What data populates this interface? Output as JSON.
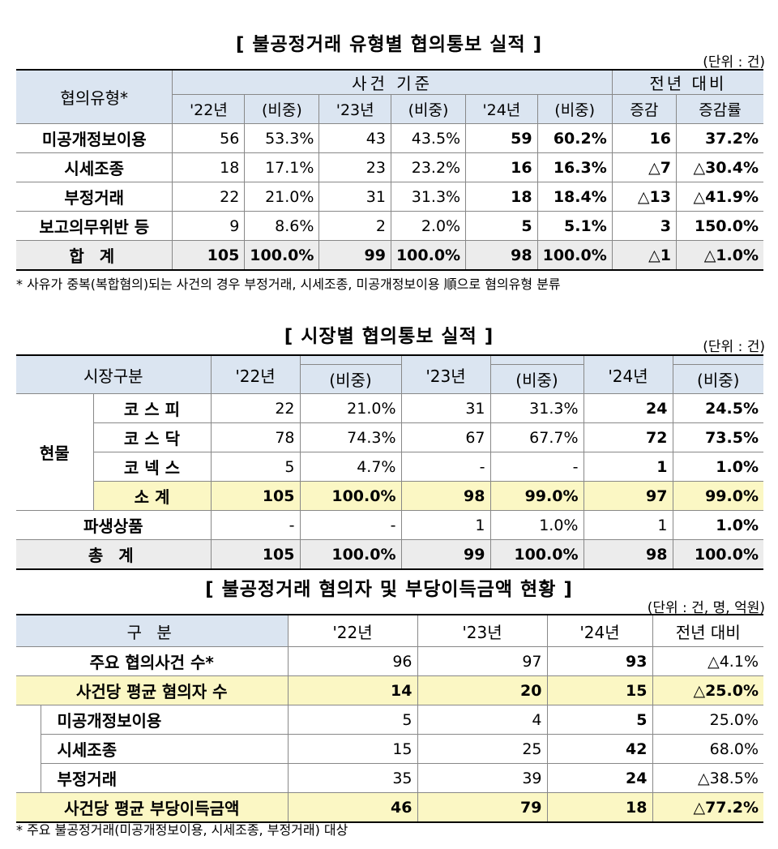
{
  "t1": {
    "title": "[ 불공정거래 유형별 협의통보 실적 ]",
    "unit": "(단위 : 건)",
    "h_type": "협의유형*",
    "h_case": "사건 기준",
    "h_prev": "전년 대비",
    "h_22": "'22년",
    "h_ratio": "(비중)",
    "h_23": "'23년",
    "h_24": "'24년",
    "h_inc": "증감",
    "h_rate": "증감률",
    "rows": [
      {
        "label": "미공개정보이용",
        "v22": "56",
        "r22": "53.3%",
        "v23": "43",
        "r23": "43.5%",
        "v24": "59",
        "r24": "60.2%",
        "inc": "16",
        "rate": "37.2%"
      },
      {
        "label": "시세조종",
        "v22": "18",
        "r22": "17.1%",
        "v23": "23",
        "r23": "23.2%",
        "v24": "16",
        "r24": "16.3%",
        "inc": "△7",
        "rate": "△30.4%"
      },
      {
        "label": "부정거래",
        "v22": "22",
        "r22": "21.0%",
        "v23": "31",
        "r23": "31.3%",
        "v24": "18",
        "r24": "18.4%",
        "inc": "△13",
        "rate": "△41.9%"
      },
      {
        "label": "보고의무위반 등",
        "v22": "9",
        "r22": "8.6%",
        "v23": "2",
        "r23": "2.0%",
        "v24": "5",
        "r24": "5.1%",
        "inc": "3",
        "rate": "150.0%"
      },
      {
        "label": "합 계",
        "v22": "105",
        "r22": "100.0%",
        "v23": "99",
        "r23": "100.0%",
        "v24": "98",
        "r24": "100.0%",
        "inc": "△1",
        "rate": "△1.0%"
      }
    ],
    "note": "* 사유가 중복(복합혐의)되는 사건의 경우 부정거래, 시세조종, 미공개정보이용 順으로 혐의유형 분류"
  },
  "t2": {
    "title": "[ 시장별 협의통보 실적 ]",
    "unit": "(단위 : 건)",
    "h_market": "시장구분",
    "h_22": "'22년",
    "h_23": "'23년",
    "h_24": "'24년",
    "h_ratio": "(비중)",
    "spot": "현물",
    "rows": [
      {
        "label": "코 스 피",
        "v22": "22",
        "r22": "21.0%",
        "v23": "31",
        "r23": "31.3%",
        "v24": "24",
        "r24": "24.5%"
      },
      {
        "label": "코 스 닥",
        "v22": "78",
        "r22": "74.3%",
        "v23": "67",
        "r23": "67.7%",
        "v24": "72",
        "r24": "73.5%"
      },
      {
        "label": "코 넥 스",
        "v22": "5",
        "r22": "4.7%",
        "v23": "-",
        "r23": "-",
        "v24": "1",
        "r24": "1.0%"
      },
      {
        "label": "소 계",
        "v22": "105",
        "r22": "100.0%",
        "v23": "98",
        "r23": "99.0%",
        "v24": "97",
        "r24": "99.0%"
      },
      {
        "label": "파생상품",
        "v22": "-",
        "r22": "-",
        "v23": "1",
        "r23": "1.0%",
        "v24": "1",
        "r24": "1.0%"
      },
      {
        "label": "총 계",
        "v22": "105",
        "r22": "100.0%",
        "v23": "99",
        "r23": "100.0%",
        "v24": "98",
        "r24": "100.0%"
      }
    ]
  },
  "t3": {
    "title": "[ 불공정거래 혐의자 및 부당이득금액 현황 ]",
    "unit": "(단위 : 건, 명, 억원)",
    "h_cat": "구 분",
    "h_22": "'22년",
    "h_23": "'23년",
    "h_24": "'24년",
    "h_prev": "전년 대비",
    "rows": [
      {
        "label": "주요 협의사건 수*",
        "v22": "96",
        "v23": "97",
        "v24": "93",
        "prev": "△4.1%"
      },
      {
        "label": "사건당 평균 혐의자 수",
        "v22": "14",
        "v23": "20",
        "v24": "15",
        "prev": "△25.0%"
      },
      {
        "label": "미공개정보이용",
        "v22": "5",
        "v23": "4",
        "v24": "5",
        "prev": "25.0%"
      },
      {
        "label": "시세조종",
        "v22": "15",
        "v23": "25",
        "v24": "42",
        "prev": "68.0%"
      },
      {
        "label": "부정거래",
        "v22": "35",
        "v23": "39",
        "v24": "24",
        "prev": "△38.5%"
      },
      {
        "label": "사건당 평균 부당이득금액",
        "v22": "46",
        "v23": "79",
        "v24": "18",
        "prev": "△77.2%"
      }
    ],
    "note": "* 주요 불공정거래(미공개정보이용, 시세조종, 부정거래) 대상"
  }
}
